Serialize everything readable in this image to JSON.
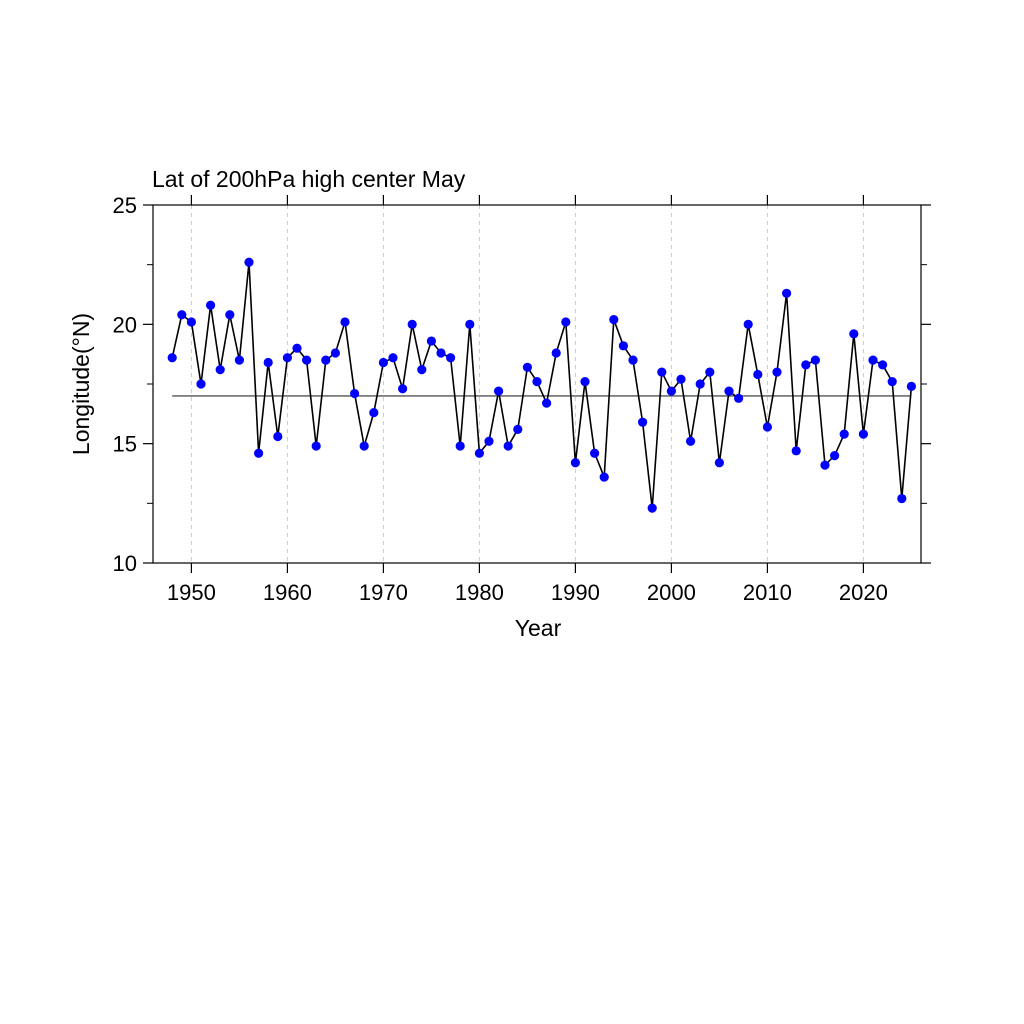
{
  "chart_data": {
    "type": "line",
    "title": "Lat of 200hPa high center May",
    "xlabel": "Year",
    "ylabel": "Longitude(°N)",
    "xlim": [
      1946,
      2026
    ],
    "ylim": [
      10,
      25
    ],
    "xticks": [
      1950,
      1960,
      1970,
      1980,
      1990,
      2000,
      2010,
      2020
    ],
    "xtick_labels": [
      "1950",
      "1960",
      "1970",
      "1980",
      "1990",
      "2000",
      "2010",
      "2020"
    ],
    "yticks": [
      10,
      15,
      20,
      25
    ],
    "ytick_labels": [
      "10",
      "15",
      "20",
      "25"
    ],
    "y_minor_ticks": [
      12.5,
      17.5,
      22.5
    ],
    "grid": "vertical dashed at major x ticks",
    "reference_line": {
      "y": 17.0,
      "color": "#555555"
    },
    "series": [
      {
        "color": "#0000ff",
        "line_color": "#000000",
        "x": [
          1948,
          1949,
          1950,
          1951,
          1952,
          1953,
          1954,
          1955,
          1956,
          1957,
          1958,
          1959,
          1960,
          1961,
          1962,
          1963,
          1964,
          1965,
          1966,
          1967,
          1968,
          1969,
          1970,
          1971,
          1972,
          1973,
          1974,
          1975,
          1976,
          1977,
          1978,
          1979,
          1980,
          1981,
          1982,
          1983,
          1984,
          1985,
          1986,
          1987,
          1988,
          1989,
          1990,
          1991,
          1992,
          1993,
          1994,
          1995,
          1996,
          1997,
          1998,
          1999,
          2000,
          2001,
          2002,
          2003,
          2004,
          2005,
          2006,
          2007,
          2008,
          2009,
          2010,
          2011,
          2012,
          2013,
          2014,
          2015,
          2016,
          2017,
          2018,
          2019,
          2020,
          2021,
          2022,
          2023,
          2024,
          2025
        ],
        "y": [
          18.6,
          20.4,
          20.1,
          17.5,
          20.8,
          18.1,
          20.4,
          18.5,
          22.6,
          14.6,
          18.4,
          15.3,
          18.6,
          19.0,
          18.5,
          14.9,
          18.5,
          18.8,
          20.1,
          17.1,
          14.9,
          16.3,
          18.4,
          18.6,
          17.3,
          20.0,
          18.1,
          19.3,
          18.8,
          18.6,
          14.9,
          20.0,
          14.6,
          15.1,
          17.2,
          14.9,
          15.6,
          18.2,
          17.6,
          16.7,
          18.8,
          20.1,
          14.2,
          17.6,
          14.6,
          13.6,
          20.2,
          19.1,
          18.5,
          15.9,
          12.3,
          18.0,
          17.2,
          17.7,
          15.1,
          17.5,
          18.0,
          14.2,
          17.2,
          16.9,
          20.0,
          17.9,
          15.7,
          18.0,
          21.3,
          14.7,
          18.3,
          18.5,
          14.1,
          14.5,
          15.4,
          19.6,
          15.4,
          18.5,
          18.3,
          17.6,
          12.7,
          17.4
        ]
      }
    ]
  }
}
